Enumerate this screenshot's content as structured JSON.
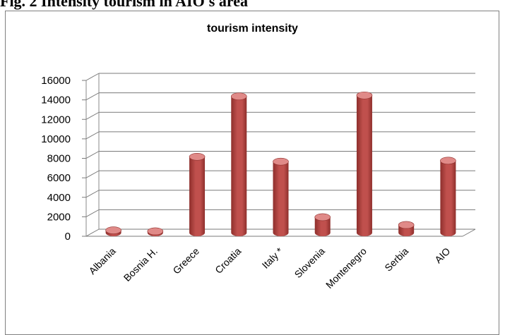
{
  "caption": "Fig. 2 Intensity tourism in AIO's area",
  "chart_data": {
    "type": "bar",
    "title": "tourism intensity",
    "xlabel": "",
    "ylabel": "",
    "categories": [
      "Albania",
      "Bosnia H.",
      "Greece",
      "Croatia",
      "Italy *",
      "Slovenia",
      "Montenegro",
      "Serbia",
      "AIO"
    ],
    "values": [
      250,
      150,
      7800,
      14000,
      7300,
      1600,
      14100,
      800,
      7400
    ],
    "ylim": [
      0,
      16000
    ],
    "yticks": [
      0,
      2000,
      4000,
      6000,
      8000,
      10000,
      12000,
      14000,
      16000
    ],
    "grid": true,
    "legend": "none",
    "bar_color": "#c0504d",
    "bar_dark": "#8e2f2c",
    "bar_top": "#e08a88"
  }
}
